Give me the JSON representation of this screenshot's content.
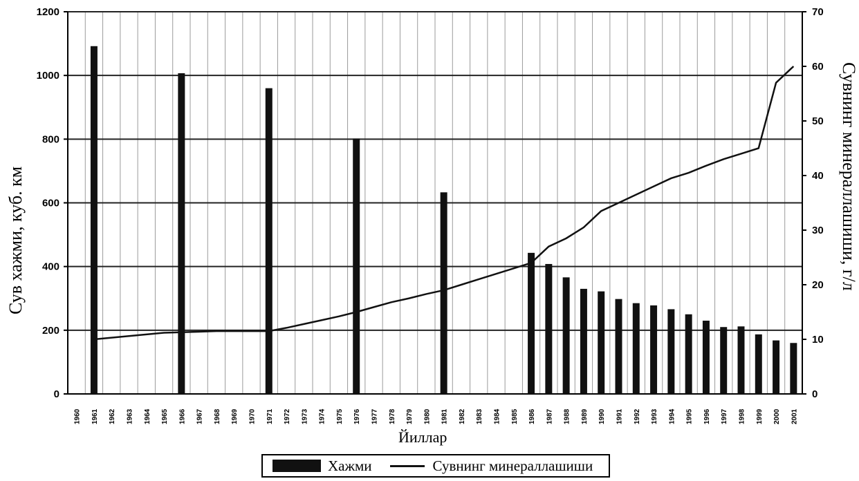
{
  "chart_data": {
    "type": "bar",
    "categories": [
      "1960",
      "1961",
      "1962",
      "1963",
      "1964",
      "1965",
      "1966",
      "1967",
      "1968",
      "1969",
      "1970",
      "1971",
      "1972",
      "1973",
      "1974",
      "1975",
      "1976",
      "1977",
      "1978",
      "1979",
      "1980",
      "1981",
      "1982",
      "1983",
      "1984",
      "1985",
      "1986",
      "1987",
      "1988",
      "1989",
      "1990",
      "1991",
      "1992",
      "1993",
      "1994",
      "1995",
      "1996",
      "1997",
      "1998",
      "1999",
      "2000",
      "2001"
    ],
    "series": [
      {
        "name": "Хажми",
        "axis": "left",
        "type": "bar",
        "values": [
          null,
          1092,
          null,
          null,
          null,
          null,
          1007,
          null,
          null,
          null,
          null,
          960,
          null,
          null,
          null,
          null,
          802,
          null,
          null,
          null,
          null,
          633,
          null,
          null,
          null,
          null,
          443,
          408,
          366,
          330,
          322,
          298,
          285,
          278,
          266,
          250,
          230,
          210,
          212,
          187,
          168,
          160
        ]
      },
      {
        "name": "Сувнинг минераллашиши",
        "axis": "right",
        "type": "line",
        "values": [
          null,
          10.0,
          10.3,
          10.6,
          10.9,
          11.2,
          11.3,
          11.4,
          11.5,
          11.5,
          11.5,
          11.5,
          12.1,
          12.8,
          13.5,
          14.2,
          15.0,
          15.9,
          16.8,
          17.5,
          18.3,
          19.0,
          20.0,
          21.0,
          22.0,
          23.0,
          24.0,
          27.0,
          28.5,
          30.5,
          33.5,
          35.0,
          36.5,
          38.0,
          39.5,
          40.5,
          41.8,
          43.0,
          44.0,
          45.0,
          57.0,
          60.0
        ]
      }
    ],
    "ylabel": "Сув хажми, куб. км",
    "y2label": "Сувнинг минераллашиши, г/л",
    "xlabel": "Йиллар",
    "ylim": [
      0,
      1200
    ],
    "y2lim": [
      0,
      70
    ],
    "yticks": [
      "0",
      "200",
      "400",
      "600",
      "800",
      "1000",
      "1200"
    ],
    "y2ticks": [
      "0",
      "10",
      "20",
      "30",
      "40",
      "50",
      "60",
      "70"
    ],
    "grid": true,
    "legend_position": "bottom"
  }
}
